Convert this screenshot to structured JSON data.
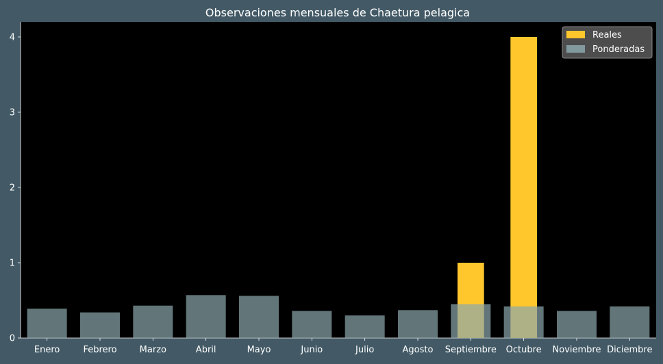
{
  "chart_data": {
    "type": "bar",
    "title": "Observaciones mensuales de Chaetura pelagica",
    "xlabel": "",
    "ylabel": "",
    "categories": [
      "Enero",
      "Febrero",
      "Marzo",
      "Abril",
      "Mayo",
      "Junio",
      "Julio",
      "Agosto",
      "Septiembre",
      "Octubre",
      "Noviembre",
      "Diciembre"
    ],
    "series": [
      {
        "name": "Reales",
        "color": "#ffc72c",
        "values": [
          0,
          0,
          0,
          0,
          0,
          0,
          0,
          0,
          1,
          4,
          0,
          0
        ]
      },
      {
        "name": "Ponderadas",
        "color": "#8ca7ad",
        "values": [
          0.39,
          0.34,
          0.43,
          0.57,
          0.56,
          0.36,
          0.3,
          0.37,
          0.45,
          0.42,
          0.36,
          0.42
        ]
      }
    ],
    "ylim": [
      0,
      4.2
    ],
    "yticks": [
      0,
      1,
      2,
      3,
      4
    ],
    "grid": false,
    "legend": "top-right",
    "colors": {
      "figure_background": "#435a66",
      "plot_background": "#000000",
      "text": "#ffffff",
      "legend_background": "#5a5a5a"
    }
  }
}
